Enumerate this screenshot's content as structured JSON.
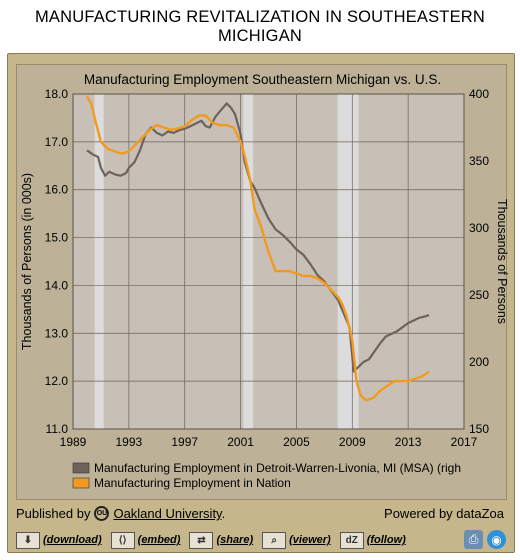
{
  "page": {
    "title": "MANUFACTURING REVITALIZATION IN SOUTHEASTERN MICHIGAN"
  },
  "footer": {
    "published_by": "Published by",
    "logo_text": "OU",
    "publisher": "Oakland University",
    "period": ".",
    "powered_by": "Powered by dataZoa"
  },
  "toolbar": {
    "items": [
      {
        "label": "(download)",
        "icon": "download-icon",
        "glyph": "⬇"
      },
      {
        "label": "(embed)",
        "icon": "embed-icon",
        "glyph": "⟨⟩"
      },
      {
        "label": "(share)",
        "icon": "share-icon",
        "glyph": "⇄"
      },
      {
        "label": "(viewer)",
        "icon": "viewer-icon",
        "glyph": "⌕"
      },
      {
        "label": "(follow)",
        "icon": "follow-icon",
        "glyph": "dZ"
      }
    ],
    "right_icons": [
      {
        "icon": "print-icon",
        "glyph": "⎙"
      },
      {
        "icon": "camera-icon",
        "glyph": "◉"
      }
    ]
  },
  "colors": {
    "detroit": "#6e625b",
    "nation": "#f29a1e",
    "plot_bg": "#c8c0b7",
    "recession": "#dcdcdc",
    "grid": "#6a6258"
  },
  "chart_data": {
    "type": "line",
    "title": "Manufacturing Employment Southeastern Michigan vs. U.S.",
    "xlabel": "",
    "ylabel_left": "Thousands of Persons (in 000s)",
    "ylabel_right": "Thousands of Persons",
    "xlim": [
      1989,
      2017
    ],
    "ylim_left": [
      11.0,
      18.0
    ],
    "ylim_right": [
      150,
      400
    ],
    "x_ticks": [
      1989,
      1993,
      1997,
      2001,
      2005,
      2009,
      2013,
      2017
    ],
    "y_ticks_left": [
      "11.0",
      "12.0",
      "13.0",
      "14.0",
      "15.0",
      "16.0",
      "17.0",
      "18.0"
    ],
    "y_ticks_right": [
      "150",
      "200",
      "250",
      "300",
      "350",
      "400"
    ],
    "grid": true,
    "legend_placement": "bottom",
    "recessions": [
      [
        1990.55,
        1991.2
      ],
      [
        2001.2,
        2001.9
      ],
      [
        2007.95,
        2009.45
      ]
    ],
    "series": [
      {
        "name": "Manufacturing Employment in Detroit-Warren-Livonia, MI (MSA) (righ",
        "axis": "right",
        "x": [
          1990.0,
          1990.4,
          1990.8,
          1991.0,
          1991.3,
          1991.6,
          1992.0,
          1992.4,
          1992.8,
          1993.0,
          1993.4,
          1993.8,
          1994.2,
          1994.6,
          1995.0,
          1995.4,
          1995.8,
          1996.2,
          1996.6,
          1997.0,
          1997.4,
          1997.8,
          1998.2,
          1998.5,
          1998.8,
          1999.2,
          1999.6,
          2000.0,
          2000.3,
          2000.6,
          2001.0,
          2001.3,
          2001.7,
          2002.0,
          2002.5,
          2003.0,
          2003.5,
          2004.0,
          2004.5,
          2005.0,
          2005.5,
          2006.0,
          2006.5,
          2007.0,
          2007.5,
          2008.0,
          2008.4,
          2008.8,
          2009.1,
          2009.4,
          2009.8,
          2010.2,
          2010.6,
          2011.0,
          2011.4,
          2011.8,
          2012.2,
          2012.6,
          2013.0,
          2013.4,
          2013.8,
          2014.2,
          2014.5
        ],
        "values": [
          358,
          355,
          353,
          345,
          339,
          342,
          340,
          339,
          341,
          345,
          349,
          358,
          370,
          375,
          371,
          369,
          372,
          371,
          373,
          374,
          376,
          378,
          380,
          376,
          375,
          383,
          388,
          393,
          390,
          385,
          370,
          349,
          335,
          330,
          318,
          307,
          299,
          295,
          290,
          284,
          280,
          273,
          265,
          260,
          253,
          246,
          236,
          226,
          193,
          196,
          200,
          202,
          208,
          214,
          219,
          221,
          223,
          226,
          229,
          231,
          233,
          234,
          235
        ]
      },
      {
        "name": "Manufacturing Employment in Nation",
        "axis": "left",
        "x": [
          1990.0,
          1990.3,
          1990.6,
          1991.0,
          1991.5,
          1992.0,
          1992.5,
          1993.0,
          1993.5,
          1994.0,
          1994.5,
          1995.0,
          1995.5,
          1996.0,
          1996.5,
          1997.0,
          1997.5,
          1998.0,
          1998.5,
          1999.0,
          1999.5,
          2000.0,
          2000.5,
          2001.0,
          2001.3,
          2001.7,
          2002.0,
          2002.5,
          2003.0,
          2003.5,
          2004.0,
          2004.5,
          2005.0,
          2005.5,
          2006.0,
          2006.5,
          2007.0,
          2007.5,
          2008.0,
          2008.3,
          2008.6,
          2009.0,
          2009.3,
          2009.6,
          2010.0,
          2010.5,
          2011.0,
          2011.5,
          2012.0,
          2012.5,
          2013.0,
          2013.5,
          2014.0,
          2014.5
        ],
        "values": [
          17.95,
          17.8,
          17.45,
          17.0,
          16.85,
          16.8,
          16.75,
          16.8,
          16.95,
          17.1,
          17.25,
          17.35,
          17.3,
          17.25,
          17.28,
          17.32,
          17.45,
          17.55,
          17.55,
          17.4,
          17.35,
          17.35,
          17.3,
          17.0,
          16.7,
          16.2,
          15.6,
          15.2,
          14.7,
          14.3,
          14.3,
          14.3,
          14.25,
          14.2,
          14.2,
          14.15,
          14.05,
          13.9,
          13.75,
          13.6,
          13.35,
          12.85,
          12.0,
          11.7,
          11.6,
          11.65,
          11.8,
          11.9,
          12.0,
          12.0,
          12.0,
          12.05,
          12.1,
          12.2
        ]
      }
    ]
  }
}
